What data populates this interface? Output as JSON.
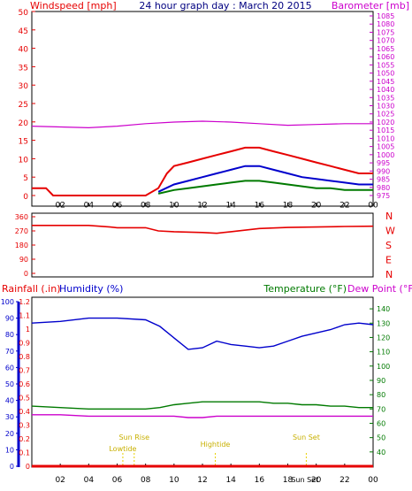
{
  "header": {
    "left_label": "Windspeed [mph]",
    "title": "24 hour graph day : March 20 2015",
    "right_label": "Barometer [mb]"
  },
  "colors": {
    "red": "#e60000",
    "blue": "#0000cc",
    "green": "#007a00",
    "magenta": "#cc00cc",
    "yellow": "#e8d000",
    "frame": "#000000"
  },
  "chart_data": [
    {
      "type": "line",
      "name": "wind-barometer-panel",
      "x_ticks": [
        "02",
        "04",
        "06",
        "08",
        "10",
        "12",
        "14",
        "16",
        "18",
        "20",
        "22",
        "00"
      ],
      "left_axis": {
        "label": "Windspeed [mph]",
        "ylim": [
          0,
          50
        ],
        "ticks": [
          0,
          5,
          10,
          15,
          20,
          25,
          30,
          35,
          40,
          45,
          50
        ]
      },
      "right_axis": {
        "label": "Barometer [mb]",
        "ylim": [
          975,
          1085
        ],
        "ticks": [
          975,
          980,
          985,
          990,
          995,
          1000,
          1005,
          1010,
          1015,
          1020,
          1025,
          1030,
          1035,
          1040,
          1045,
          1050,
          1055,
          1060,
          1065,
          1070,
          1075,
          1080,
          1085
        ]
      },
      "series": [
        {
          "color": "red",
          "axis": "left",
          "x": [
            0,
            0.5,
            1,
            1.5,
            2,
            4,
            6,
            8,
            8.9,
            9.5,
            10,
            11,
            12,
            13,
            14,
            15,
            16,
            17,
            18,
            19,
            20,
            21,
            22,
            23,
            24
          ],
          "y": [
            2,
            2,
            2,
            0,
            0,
            0,
            0,
            0,
            2,
            6,
            8,
            9,
            10,
            11,
            12,
            13,
            13,
            12,
            11,
            10,
            9,
            8,
            7,
            6,
            6
          ]
        },
        {
          "color": "blue",
          "axis": "left",
          "x": [
            8.9,
            10,
            11,
            12,
            13,
            14,
            15,
            16,
            17,
            18,
            19,
            20,
            21,
            22,
            23,
            24
          ],
          "y": [
            1,
            3,
            4,
            5,
            6,
            7,
            8,
            8,
            7,
            6,
            5,
            4.5,
            4,
            3.5,
            3,
            3
          ]
        },
        {
          "color": "green",
          "axis": "left",
          "x": [
            8.9,
            10,
            11,
            12,
            13,
            14,
            15,
            16,
            17,
            18,
            19,
            20,
            21,
            22,
            23,
            24
          ],
          "y": [
            0.5,
            1.5,
            2,
            2.5,
            3,
            3.5,
            4,
            4,
            3.5,
            3,
            2.5,
            2,
            2,
            1.5,
            1.5,
            1.5
          ]
        },
        {
          "color": "magenta",
          "axis": "right",
          "x": [
            0,
            2,
            4,
            6,
            8,
            10,
            12,
            14,
            16,
            18,
            20,
            22,
            24
          ],
          "y": [
            1017.5,
            1017,
            1016.5,
            1017.5,
            1019,
            1020,
            1020.5,
            1020,
            1019,
            1018,
            1018.5,
            1019,
            1019
          ]
        }
      ]
    },
    {
      "type": "line",
      "name": "wind-direction-panel",
      "x_ticks": [],
      "left_axis": {
        "ylim": [
          0,
          360
        ],
        "ticks": [
          0,
          45,
          90,
          135,
          180,
          225,
          270,
          315,
          360
        ]
      },
      "right_axis": {
        "ticks": [
          "N",
          "W",
          "S",
          "E",
          "N"
        ]
      },
      "series": [
        {
          "color": "red",
          "x": [
            0,
            2,
            4,
            5.5,
            6,
            8,
            8.9,
            10,
            12,
            13,
            14,
            16,
            18,
            20,
            22,
            24
          ],
          "y": [
            305,
            305,
            305,
            295,
            290,
            290,
            270,
            265,
            260,
            255,
            265,
            285,
            292,
            295,
            298,
            300
          ]
        }
      ]
    },
    {
      "type": "line",
      "name": "rain-humidity-temperature-panel",
      "header": {
        "rainfall": "Rainfall (.in)",
        "humidity": "Humidity (%)",
        "temperature": "Temperature (°F)",
        "dewpoint": "Dew Point (°F)"
      },
      "x_ticks": [
        "02",
        "04",
        "06",
        "08",
        "10",
        "12",
        "14",
        "16",
        "18",
        "20",
        "22",
        "00"
      ],
      "rain_axis": {
        "ylim": [
          0,
          1.2
        ],
        "ticks": [
          "0",
          "0.1",
          "0.2",
          "0.3",
          "0.4",
          "0.5",
          "0.6",
          "0.7",
          "0.8",
          "0.9",
          "1",
          "1.1",
          "1.2"
        ]
      },
      "humidity_axis": {
        "ylim": [
          0,
          100
        ],
        "ticks": [
          0,
          10,
          20,
          30,
          40,
          50,
          60,
          70,
          80,
          90,
          100
        ]
      },
      "temp_axis": {
        "ylim": [
          30,
          145
        ],
        "ticks": [
          40,
          50,
          60,
          70,
          80,
          90,
          100,
          110,
          120,
          130,
          140
        ]
      },
      "series": [
        {
          "color": "blue",
          "axis": "humidity",
          "x": [
            0,
            2,
            4,
            6,
            8,
            9,
            10,
            11,
            12,
            13,
            14,
            15,
            16,
            17,
            18,
            19,
            20,
            21,
            22,
            23,
            24
          ],
          "y": [
            87,
            88,
            90,
            90,
            89,
            85,
            78,
            71,
            72,
            76,
            74,
            73,
            72,
            73,
            76,
            79,
            81,
            83,
            86,
            87,
            86
          ]
        },
        {
          "color": "green",
          "axis": "temp",
          "x": [
            0,
            2,
            4,
            6,
            8,
            9,
            10,
            11,
            12,
            13,
            14,
            15,
            16,
            17,
            18,
            19,
            20,
            21,
            22,
            23,
            24
          ],
          "y": [
            72,
            71,
            70,
            70,
            70,
            71,
            73,
            74,
            75,
            75,
            75,
            75,
            75,
            74,
            74,
            73,
            73,
            72,
            72,
            71,
            71
          ]
        },
        {
          "color": "magenta",
          "axis": "temp",
          "x": [
            0,
            2,
            4,
            6,
            8,
            9,
            10,
            11,
            12,
            13,
            14,
            15,
            16,
            17,
            18,
            19,
            20,
            21,
            22,
            23,
            24
          ],
          "y": [
            66,
            66,
            65,
            65,
            65,
            65,
            65,
            64,
            64,
            65,
            65,
            65,
            65,
            65,
            65,
            65,
            65,
            65,
            65,
            65,
            65
          ]
        }
      ],
      "markers": [
        {
          "label": "Lowtide",
          "x": 6.4
        },
        {
          "label": "Sun Rise",
          "x": 7.2
        },
        {
          "label": "Hightide",
          "x": 12.9
        },
        {
          "label": "Sun Set",
          "x": 19.3
        }
      ],
      "overlap_label": "Sun Set"
    }
  ]
}
